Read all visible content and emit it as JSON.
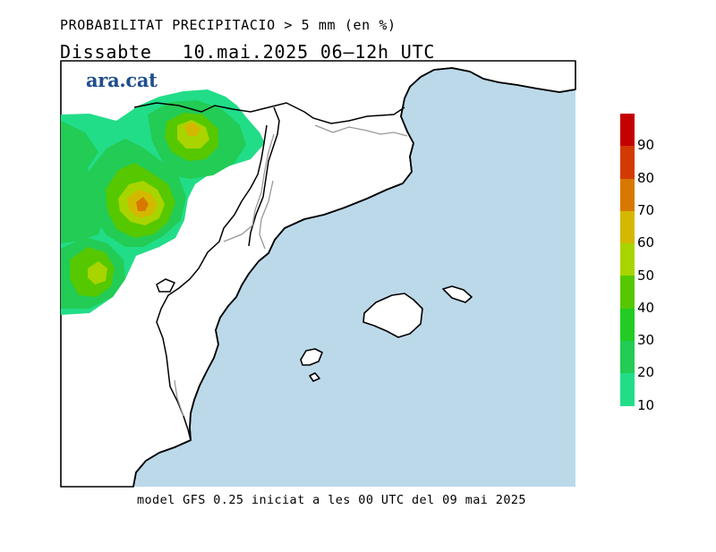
{
  "header": {
    "title": "PROBABILITAT PRECIPITACIO > 5 mm (en %)",
    "day": "Dissabte",
    "date": "10.mai.2025",
    "time_range": "06–12h",
    "timezone": "UTC"
  },
  "logo": {
    "text": "ara.cat"
  },
  "footer": {
    "text": "model GFS 0.25 iniciat a les 00 UTC del 09 mai 2025"
  },
  "legend": {
    "labels": [
      "90",
      "80",
      "70",
      "60",
      "50",
      "40",
      "30",
      "20",
      "10"
    ],
    "colors": [
      "#c40000",
      "#d33a00",
      "#d87800",
      "#d4b800",
      "#a8d400",
      "#55c800",
      "#22cc22",
      "#22cc55",
      "#22dd88"
    ]
  },
  "map": {
    "sea_color": "#bcd9ea",
    "land_color": "#ffffff"
  }
}
